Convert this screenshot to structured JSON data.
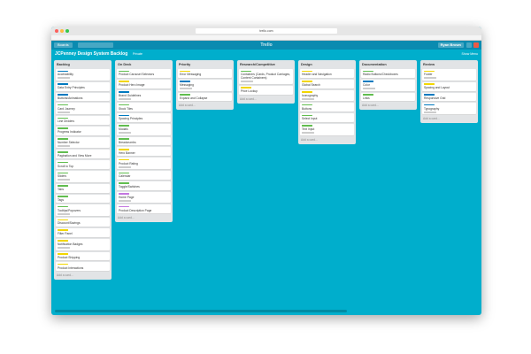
{
  "browser": {
    "url": "trello.com"
  },
  "header": {
    "boards": "Boards",
    "logo": "Trello",
    "user": "Ryan Brown"
  },
  "board": {
    "title": "JCPenney Design System Backlog",
    "visibility": "Private",
    "menu": "Show Menu"
  },
  "lists": [
    {
      "name": "Backlog",
      "add": "Add a card...",
      "cards": [
        {
          "text": "Accessibility",
          "label": "blue"
        },
        {
          "text": "Data Entry Principles",
          "label": "blue"
        },
        {
          "text": "Buttons/Animations",
          "label": "blue"
        },
        {
          "text": "Card Journey",
          "label": "green"
        },
        {
          "text": "Line Dividers",
          "label": "green"
        },
        {
          "text": "Progress Indicator",
          "label": "green"
        },
        {
          "text": "Number Selector",
          "label": "green"
        },
        {
          "text": "Pagination and View More",
          "label": "green"
        },
        {
          "text": "Scroll to Top",
          "label": "green"
        },
        {
          "text": "Sliders",
          "label": "green"
        },
        {
          "text": "Tabs",
          "label": "green"
        },
        {
          "text": "Tags",
          "label": "green"
        },
        {
          "text": "Tooltips/Popovers",
          "label": "green"
        },
        {
          "text": "Discount/Savings",
          "label": "yellow"
        },
        {
          "text": "Filter Panel",
          "label": "yellow"
        },
        {
          "text": "Notification Badges",
          "label": "yellow"
        },
        {
          "text": "Product Shipping",
          "label": "yellow"
        },
        {
          "text": "Product Interactions",
          "label": "yellow"
        }
      ]
    },
    {
      "name": "On Deck",
      "add": "Add a card...",
      "cards": [
        {
          "text": "Product Carousel Selectors",
          "label": "green"
        },
        {
          "text": "Product Hero Image",
          "label": "yellow"
        },
        {
          "text": "Brand Guidelines",
          "label": "blue"
        },
        {
          "text": "Stock Tiles",
          "label": "green"
        },
        {
          "text": "Spacing Principles",
          "label": "blue"
        },
        {
          "text": "Modals",
          "label": "green"
        },
        {
          "text": "Breadcrumbs",
          "label": "green"
        },
        {
          "text": "Hero Banner",
          "label": "yellow"
        },
        {
          "text": "Product Rating",
          "label": "yellow"
        },
        {
          "text": "Calendar",
          "label": "green"
        },
        {
          "text": "Toggle/Switches",
          "label": "green"
        },
        {
          "text": "Home Page",
          "label": "purple"
        },
        {
          "text": "Product Description Page",
          "label": "purple"
        }
      ]
    },
    {
      "name": "Priority",
      "add": "Add a card...",
      "cards": [
        {
          "text": "Error Messaging",
          "label": "yellow"
        },
        {
          "text": "Messaging",
          "label": "blue"
        },
        {
          "text": "Expand and Collapse",
          "label": "green"
        }
      ]
    },
    {
      "name": "Research/Competitive",
      "add": "Add a card...",
      "cards": [
        {
          "text": "Containers (Cards, Product Carriages, Content Containers)",
          "label": "green"
        },
        {
          "text": "Price Lockup",
          "label": "yellow"
        }
      ]
    },
    {
      "name": "Design",
      "add": "Add a card...",
      "cards": [
        {
          "text": "Header and Navigation",
          "label": "yellow"
        },
        {
          "text": "Global Search",
          "label": "yellow"
        },
        {
          "text": "Iconography",
          "label": "yellow"
        },
        {
          "text": "Buttons",
          "label": "green"
        },
        {
          "text": "Select Input",
          "label": "green"
        },
        {
          "text": "Text Input",
          "label": "green"
        }
      ]
    },
    {
      "name": "Documentation",
      "add": "Add a card...",
      "cards": [
        {
          "text": "Radio Buttons/Checkboxes",
          "label": "green"
        },
        {
          "text": "Color",
          "label": "blue"
        },
        {
          "text": "Links",
          "label": "green"
        }
      ]
    },
    {
      "name": "Review",
      "add": "Add a card...",
      "cards": [
        {
          "text": "Footer",
          "label": "yellow"
        },
        {
          "text": "Spacing and Layout",
          "label": "yellow"
        },
        {
          "text": "Responsive Grid",
          "label": "blue"
        },
        {
          "text": "Typography",
          "label": "blue"
        }
      ]
    }
  ]
}
